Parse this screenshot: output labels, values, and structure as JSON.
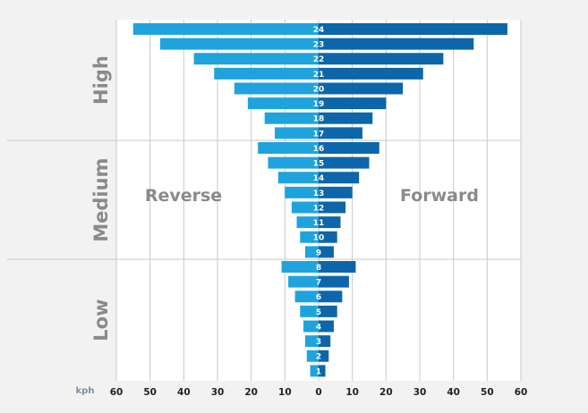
{
  "chart_data": {
    "type": "bar",
    "title": "",
    "orientation": "horizontal",
    "layout": "diverging-funnel",
    "unit_label": "kph",
    "x_ticks": [
      "60",
      "50",
      "40",
      "30",
      "20",
      "10",
      "0",
      "10",
      "20",
      "30",
      "40",
      "50",
      "60"
    ],
    "xlim": [
      -60,
      60
    ],
    "grid": "vertical gridlines every 10 kph; horizontal dividers between ranges",
    "annotations": {
      "left": "Reverse",
      "right": "Forward"
    },
    "groups": [
      {
        "label": "High",
        "gears": [
          "17",
          "18",
          "19",
          "20",
          "21",
          "22",
          "23",
          "24"
        ]
      },
      {
        "label": "Medium",
        "gears": [
          "9",
          "10",
          "11",
          "12",
          "13",
          "14",
          "15",
          "16"
        ]
      },
      {
        "label": "Low",
        "gears": [
          "1",
          "2",
          "3",
          "4",
          "5",
          "6",
          "7",
          "8"
        ]
      }
    ],
    "categories": [
      "1",
      "2",
      "3",
      "4",
      "5",
      "6",
      "7",
      "8",
      "9",
      "10",
      "11",
      "12",
      "13",
      "14",
      "15",
      "16",
      "17",
      "18",
      "19",
      "20",
      "21",
      "22",
      "23",
      "24"
    ],
    "series": [
      {
        "name": "Reverse",
        "values": [
          2.5,
          3.5,
          4,
          4.5,
          5.5,
          7,
          9,
          11,
          4,
          5.5,
          6.5,
          8,
          10,
          12,
          15,
          18,
          13,
          16,
          21,
          25,
          31,
          37,
          47,
          55
        ]
      },
      {
        "name": "Forward",
        "values": [
          2,
          3,
          3.5,
          4.5,
          5.5,
          7,
          9,
          11,
          4.5,
          5.5,
          6.5,
          8,
          10,
          12,
          15,
          18,
          13,
          16,
          20,
          25,
          31,
          37,
          46,
          56
        ]
      }
    ],
    "colors": {
      "reverse": "#1fa3dd",
      "forward": "#0c66a9",
      "label_bg": "#0f85c6"
    }
  }
}
